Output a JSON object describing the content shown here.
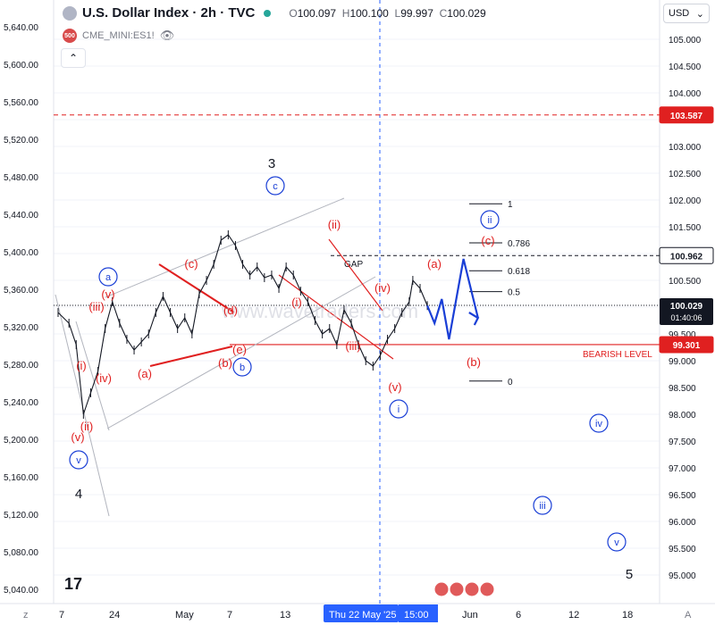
{
  "header": {
    "symbol": "U.S. Dollar Index · 2h · TVC",
    "open_label": "O",
    "open": "100.097",
    "high_label": "H",
    "high": "100.100",
    "low_label": "L",
    "low": "99.997",
    "close_label": "C",
    "close": "100.029",
    "overlay_symbol": "CME_MINI:ES1!",
    "overlay_badge": "500",
    "currency": "USD"
  },
  "colors": {
    "red": "#e02020",
    "blue": "#1a3fd6",
    "grid": "#f0f3fa",
    "text": "#131722",
    "muted": "#787b86"
  },
  "chart_data": {
    "type": "line",
    "left_axis": {
      "ticks": [
        5040,
        5080,
        5120,
        5160,
        5200,
        5240,
        5280,
        5320,
        5360,
        5400,
        5440,
        5480,
        5520,
        5560,
        5600,
        5640
      ],
      "labels": [
        "5,040.00",
        "5,080.00",
        "5,120.00",
        "5,160.00",
        "5,200.00",
        "5,240.00",
        "5,280.00",
        "5,320.00",
        "5,360.00",
        "5,400.00",
        "5,440.00",
        "5,480.00",
        "5,520.00",
        "5,560.00",
        "5,600.00",
        "5,640.00"
      ]
    },
    "right_axis": {
      "ticks": [
        95,
        95.5,
        96,
        96.5,
        97,
        97.5,
        98,
        98.5,
        99,
        99.5,
        100,
        100.5,
        101,
        101.5,
        102,
        102.5,
        103,
        103.5,
        104,
        104.5,
        105
      ],
      "labels": [
        "95.000",
        "95.500",
        "96.000",
        "96.500",
        "97.000",
        "97.500",
        "98.000",
        "98.500",
        "99.000",
        "99.500",
        "100.000",
        "100.500",
        "101.000",
        "101.500",
        "102.000",
        "102.500",
        "103.000",
        "103.500",
        "104.000",
        "104.500",
        "105.000"
      ]
    },
    "x_ticks": [
      "7",
      "24",
      "May",
      "7",
      "13",
      "Thu 22 May '25",
      "15:00",
      "Jun",
      "6",
      "12",
      "18"
    ],
    "price_series": [
      [
        0,
        99.9
      ],
      [
        3,
        99.7
      ],
      [
        5,
        99.3
      ],
      [
        7,
        98.0
      ],
      [
        9,
        98.4
      ],
      [
        11,
        98.8
      ],
      [
        13,
        99.6
      ],
      [
        15,
        100.1
      ],
      [
        17,
        99.7
      ],
      [
        19,
        99.4
      ],
      [
        21,
        99.2
      ],
      [
        23,
        99.35
      ],
      [
        25,
        99.5
      ],
      [
        27,
        99.9
      ],
      [
        29,
        100.2
      ],
      [
        31,
        99.9
      ],
      [
        33,
        99.6
      ],
      [
        35,
        99.8
      ],
      [
        37,
        99.5
      ],
      [
        39,
        100.25
      ],
      [
        41,
        100.5
      ],
      [
        43,
        100.8
      ],
      [
        45,
        101.25
      ],
      [
        47,
        101.35
      ],
      [
        49,
        101.15
      ],
      [
        51,
        100.8
      ],
      [
        53,
        100.6
      ],
      [
        55,
        100.75
      ],
      [
        57,
        100.55
      ],
      [
        59,
        100.6
      ],
      [
        61,
        100.35
      ],
      [
        63,
        100.75
      ],
      [
        65,
        100.6
      ],
      [
        67,
        100.3
      ],
      [
        69,
        100.1
      ],
      [
        71,
        99.75
      ],
      [
        73,
        99.5
      ],
      [
        75,
        99.6
      ],
      [
        77,
        99.3
      ],
      [
        79,
        99.95
      ],
      [
        81,
        99.7
      ],
      [
        83,
        99.3
      ],
      [
        85,
        99.0
      ],
      [
        87,
        98.9
      ],
      [
        89,
        99.1
      ],
      [
        91,
        99.4
      ],
      [
        93,
        99.6
      ],
      [
        95,
        99.9
      ],
      [
        97,
        100.1
      ],
      [
        98,
        100.5
      ],
      [
        100,
        100.35
      ],
      [
        102,
        100.029
      ]
    ],
    "projection": [
      [
        102,
        100.029
      ],
      [
        104,
        99.7
      ],
      [
        106,
        100.15
      ],
      [
        108,
        99.4
      ],
      [
        112,
        100.9
      ],
      [
        116,
        99.8
      ]
    ],
    "fib_levels": [
      {
        "label": "1",
        "value": 101.93
      },
      {
        "label": "0.786",
        "value": 101.2
      },
      {
        "label": "0.618",
        "value": 100.68
      },
      {
        "label": "0.5",
        "value": 100.29
      },
      {
        "label": "0",
        "value": 98.62
      }
    ],
    "horizontal_levels": [
      {
        "name": "103.587",
        "value": 103.587,
        "style": "dashed-red"
      },
      {
        "name": "100.962",
        "value": 100.962,
        "style": "dashed-black"
      },
      {
        "name": "99.301",
        "value": 99.301,
        "style": "solid-red",
        "label": "BEARISH LEVEL"
      }
    ],
    "last_price": {
      "value": "100.029",
      "countdown": "01:40:06"
    },
    "annotations": {
      "gap": "GAP",
      "waves_black": [
        "3",
        "4",
        "5"
      ],
      "waves_red": [
        "(v)",
        "(iii)",
        "(iv)",
        "(i)",
        "(ii)",
        "(v)",
        "(a)",
        "(b)",
        "(c)",
        "(d)",
        "(e)",
        "(ii)",
        "(i)",
        "(iii)",
        "(iv)",
        "(v)",
        "(a)",
        "(c)",
        "(b)"
      ],
      "waves_blue": [
        "a",
        "b",
        "c",
        "v",
        "i",
        "ii",
        "iii",
        "iv",
        "v"
      ]
    },
    "watermark": "www.wavetraders.com"
  },
  "bottom_bar": {
    "left_icon": "z",
    "right_icon": "A"
  }
}
